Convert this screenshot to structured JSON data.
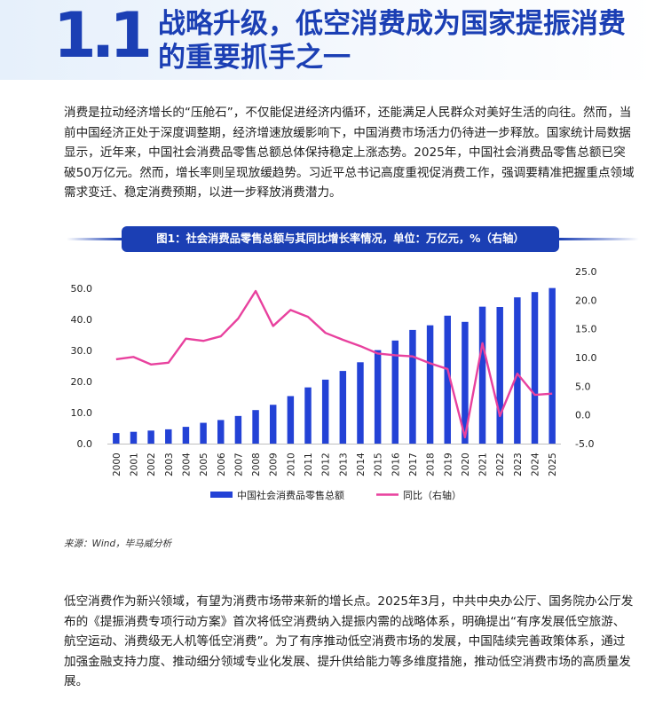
{
  "header": {
    "section_number": "1.1",
    "title": "战略升级，低空消费成为国家提振消费的重要抓手之一"
  },
  "intro_paragraph": "消费是拉动经济增长的“压舱石”，不仅能促进经济内循环，还能满足人民群众对美好生活的向往。然而，当前中国经济正处于深度调整期，经济增速放缓影响下，中国消费市场活力仍待进一步释放。国家统计局数据显示，近年来，中国社会消费品零售总额总体保持稳定上涨态势。2025年，中国社会消费品零售总额已突破50万亿元。然而，增长率则呈现放缓趋势。习近平总书记高度重视促消费工作，强调要精准把握重点领域需求变迁、稳定消费预期，以进一步释放消费潜力。",
  "figure": {
    "title": "图1：社会消费品零售总额与其同比增长率情况，单位：万亿元，%（右轴）",
    "source": "来源：Wind，毕马威分析"
  },
  "chart_data": {
    "type": "bar",
    "categories": [
      "2000",
      "2001",
      "2002",
      "2003",
      "2004",
      "2005",
      "2006",
      "2007",
      "2008",
      "2009",
      "2010",
      "2011",
      "2012",
      "2013",
      "2014",
      "2015",
      "2016",
      "2017",
      "2018",
      "2019",
      "2020",
      "2021",
      "2022",
      "2023",
      "2024",
      "2025"
    ],
    "series": [
      {
        "name": "中国社会消费品零售总额",
        "type": "bar",
        "axis": "left",
        "color": "#2342d6",
        "values": [
          3.4,
          3.8,
          4.2,
          4.6,
          5.4,
          6.7,
          7.6,
          8.9,
          10.8,
          12.5,
          15.3,
          18.1,
          20.6,
          23.4,
          26.2,
          30.1,
          33.2,
          36.6,
          38.1,
          41.2,
          39.2,
          44.1,
          44.0,
          47.1,
          48.8,
          50.1
        ]
      },
      {
        "name": "同比（右轴）",
        "type": "line",
        "axis": "right",
        "color": "#e8419e",
        "values": [
          9.7,
          10.1,
          8.8,
          9.1,
          13.3,
          12.9,
          13.7,
          16.8,
          21.6,
          15.5,
          18.3,
          17.1,
          14.3,
          13.1,
          12.0,
          10.7,
          10.4,
          10.2,
          9.0,
          8.0,
          -3.9,
          12.5,
          -0.2,
          7.2,
          3.5,
          3.7
        ]
      }
    ],
    "y_left": {
      "ylim": [
        0,
        50
      ],
      "ticks": [
        "0.0",
        "10.0",
        "20.0",
        "30.0",
        "40.0",
        "50.0"
      ]
    },
    "y_right": {
      "ylim": [
        -5,
        25
      ],
      "ticks": [
        "-5.0",
        "0.0",
        "5.0",
        "10.0",
        "15.0",
        "20.0",
        "25.0"
      ]
    },
    "grid": false,
    "legend_position": "bottom"
  },
  "closing_paragraph": "低空消费作为新兴领域，有望为消费市场带来新的增长点。2025年3月，中共中央办公厅、国务院办公厅发布的《提振消费专项行动方案》首次将低空消费纳入提振内需的战略体系，明确提出“有序发展低空旅游、航空运动、消费级无人机等低空消费”。为了有序推动低空消费市场的发展，中国陆续完善政策体系，通过加强金融支持力度、推动细分领域专业化发展、提升供给能力等多维度措施，推动低空消费市场的高质量发展。"
}
